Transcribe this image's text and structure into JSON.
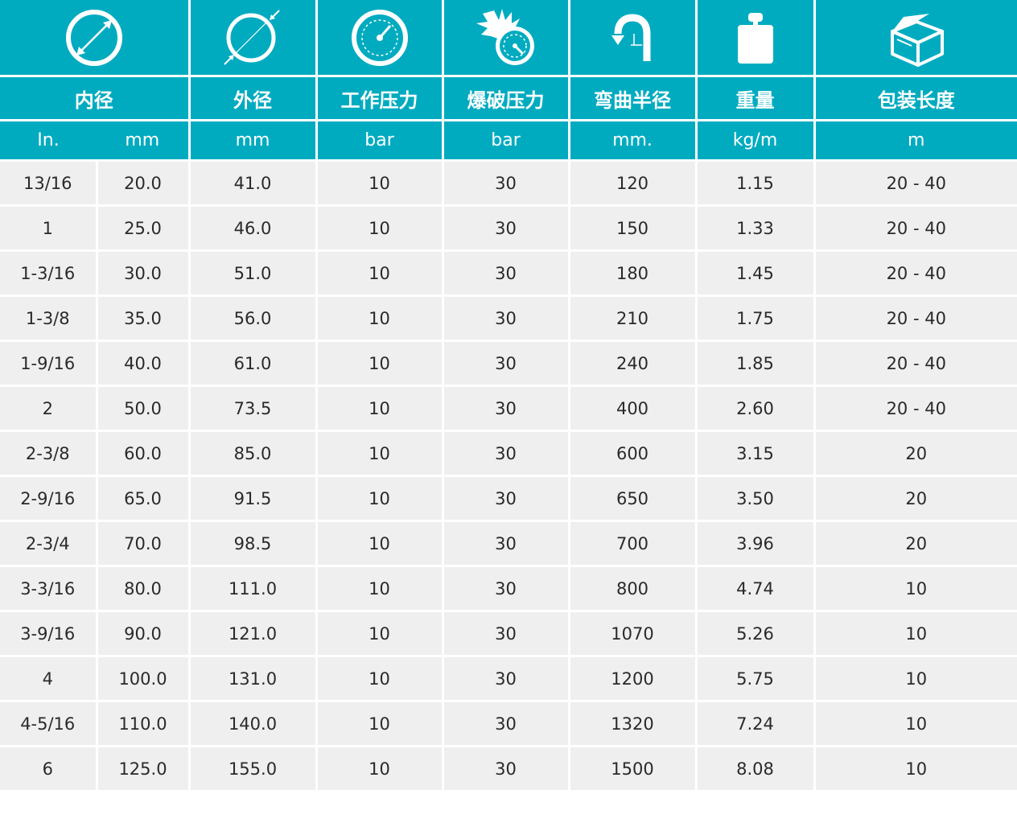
{
  "colors": {
    "header_bg": "#00abc0",
    "row_bg": "#efefef",
    "header_text": "#ffffff",
    "body_text": "#2a2a2a"
  },
  "icons": [
    "inner-diameter-icon",
    "outer-diameter-icon",
    "pressure-gauge-icon",
    "burst-gauge-icon",
    "bend-radius-icon",
    "weight-icon",
    "package-box-icon"
  ],
  "headers": {
    "inner_diameter": "内径",
    "outer_diameter": "外径",
    "working_pressure": "工作压力",
    "burst_pressure": "爆破压力",
    "bend_radius": "弯曲半径",
    "weight": "重量",
    "package_length": "包装长度"
  },
  "units": {
    "inner_in": "In.",
    "inner_mm": "mm",
    "outer_mm": "mm",
    "working_bar": "bar",
    "burst_bar": "bar",
    "bend_mm": "mm.",
    "weight_kgm": "kg/m",
    "length_m": "m"
  },
  "rows": [
    [
      "13/16",
      "20.0",
      "41.0",
      "10",
      "30",
      "120",
      "1.15",
      "20 - 40"
    ],
    [
      "1",
      "25.0",
      "46.0",
      "10",
      "30",
      "150",
      "1.33",
      "20 - 40"
    ],
    [
      "1-3/16",
      "30.0",
      "51.0",
      "10",
      "30",
      "180",
      "1.45",
      "20 - 40"
    ],
    [
      "1-3/8",
      "35.0",
      "56.0",
      "10",
      "30",
      "210",
      "1.75",
      "20 - 40"
    ],
    [
      "1-9/16",
      "40.0",
      "61.0",
      "10",
      "30",
      "240",
      "1.85",
      "20 - 40"
    ],
    [
      "2",
      "50.0",
      "73.5",
      "10",
      "30",
      "400",
      "2.60",
      "20 - 40"
    ],
    [
      "2-3/8",
      "60.0",
      "85.0",
      "10",
      "30",
      "600",
      "3.15",
      "20"
    ],
    [
      "2-9/16",
      "65.0",
      "91.5",
      "10",
      "30",
      "650",
      "3.50",
      "20"
    ],
    [
      "2-3/4",
      "70.0",
      "98.5",
      "10",
      "30",
      "700",
      "3.96",
      "20"
    ],
    [
      "3-3/16",
      "80.0",
      "111.0",
      "10",
      "30",
      "800",
      "4.74",
      "10"
    ],
    [
      "3-9/16",
      "90.0",
      "121.0",
      "10",
      "30",
      "1070",
      "5.26",
      "10"
    ],
    [
      "4",
      "100.0",
      "131.0",
      "10",
      "30",
      "1200",
      "5.75",
      "10"
    ],
    [
      "4-5/16",
      "110.0",
      "140.0",
      "10",
      "30",
      "1320",
      "7.24",
      "10"
    ],
    [
      "6",
      "125.0",
      "155.0",
      "10",
      "30",
      "1500",
      "8.08",
      "10"
    ]
  ]
}
